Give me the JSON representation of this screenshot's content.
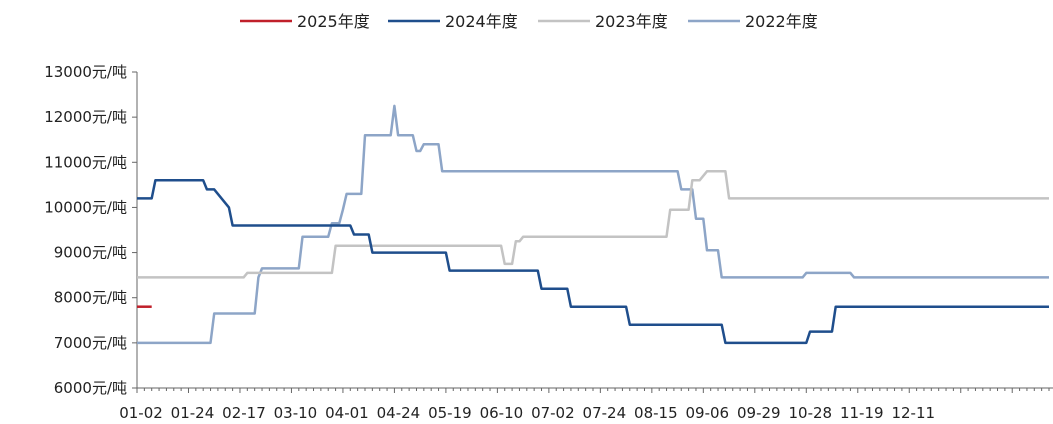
{
  "chart_data": {
    "type": "line",
    "title": "",
    "xlabel": "",
    "ylabel": "",
    "legend_position": "top",
    "grid": false,
    "ylim": [
      6000,
      13000
    ],
    "y_ticks": [
      "13000元/吨",
      "12000元/吨",
      "11000元/吨",
      "10000元/吨",
      "9000元/吨",
      "8000元/吨",
      "7000元/吨",
      "6000元/吨"
    ],
    "y_tick_values": [
      13000,
      12000,
      11000,
      10000,
      9000,
      8000,
      7000,
      6000
    ],
    "x_ticks": [
      "01-02",
      "01-24",
      "02-17",
      "03-10",
      "04-01",
      "04-24",
      "05-19",
      "06-10",
      "07-02",
      "07-24",
      "08-15",
      "09-06",
      "09-29",
      "10-28",
      "11-19",
      "12-11"
    ],
    "x_range_index": [
      0,
      248
    ],
    "series": [
      {
        "name": "2025年度",
        "color": "#c0202a",
        "points": [
          [
            0,
            7800
          ],
          [
            4,
            7800
          ]
        ]
      },
      {
        "name": "2024年度",
        "color": "#1f4e8c",
        "points": [
          [
            0,
            10200
          ],
          [
            4,
            10200
          ],
          [
            5,
            10600
          ],
          [
            18,
            10600
          ],
          [
            19,
            10400
          ],
          [
            21,
            10400
          ],
          [
            25,
            10000
          ],
          [
            26,
            9600
          ],
          [
            58,
            9600
          ],
          [
            59,
            9400
          ],
          [
            63,
            9400
          ],
          [
            64,
            9000
          ],
          [
            84,
            9000
          ],
          [
            85,
            8600
          ],
          [
            109,
            8600
          ],
          [
            110,
            8200
          ],
          [
            117,
            8200
          ],
          [
            118,
            7800
          ],
          [
            133,
            7800
          ],
          [
            134,
            7400
          ],
          [
            159,
            7400
          ],
          [
            160,
            7000
          ],
          [
            182,
            7000
          ],
          [
            183,
            7250
          ],
          [
            189,
            7250
          ],
          [
            190,
            7800
          ],
          [
            248,
            7800
          ]
        ]
      },
      {
        "name": "2023年度",
        "color": "#c3c3c3",
        "points": [
          [
            0,
            8450
          ],
          [
            29,
            8450
          ],
          [
            30,
            8550
          ],
          [
            53,
            8550
          ],
          [
            54,
            9150
          ],
          [
            99,
            9150
          ],
          [
            100,
            8750
          ],
          [
            102,
            8750
          ],
          [
            103,
            9250
          ],
          [
            104,
            9250
          ],
          [
            105,
            9350
          ],
          [
            144,
            9350
          ],
          [
            145,
            9950
          ],
          [
            150,
            9950
          ],
          [
            151,
            10600
          ],
          [
            153,
            10600
          ],
          [
            155,
            10800
          ],
          [
            160,
            10800
          ],
          [
            161,
            10200
          ],
          [
            248,
            10200
          ]
        ]
      },
      {
        "name": "2022年度",
        "color": "#8da5c7",
        "points": [
          [
            0,
            7000
          ],
          [
            20,
            7000
          ],
          [
            21,
            7650
          ],
          [
            32,
            7650
          ],
          [
            33,
            8450
          ],
          [
            34,
            8650
          ],
          [
            44,
            8650
          ],
          [
            45,
            9350
          ],
          [
            52,
            9350
          ],
          [
            53,
            9650
          ],
          [
            55,
            9650
          ],
          [
            56,
            9950
          ],
          [
            57,
            10300
          ],
          [
            61,
            10300
          ],
          [
            62,
            11600
          ],
          [
            69,
            11600
          ],
          [
            70,
            12250
          ],
          [
            71,
            11600
          ],
          [
            75,
            11600
          ],
          [
            76,
            11250
          ],
          [
            77,
            11250
          ],
          [
            78,
            11400
          ],
          [
            82,
            11400
          ],
          [
            83,
            10800
          ],
          [
            147,
            10800
          ],
          [
            148,
            10400
          ],
          [
            151,
            10400
          ],
          [
            152,
            9750
          ],
          [
            154,
            9750
          ],
          [
            155,
            9050
          ],
          [
            158,
            9050
          ],
          [
            159,
            8450
          ],
          [
            181,
            8450
          ],
          [
            182,
            8550
          ],
          [
            194,
            8550
          ],
          [
            195,
            8450
          ],
          [
            248,
            8450
          ]
        ]
      }
    ]
  }
}
